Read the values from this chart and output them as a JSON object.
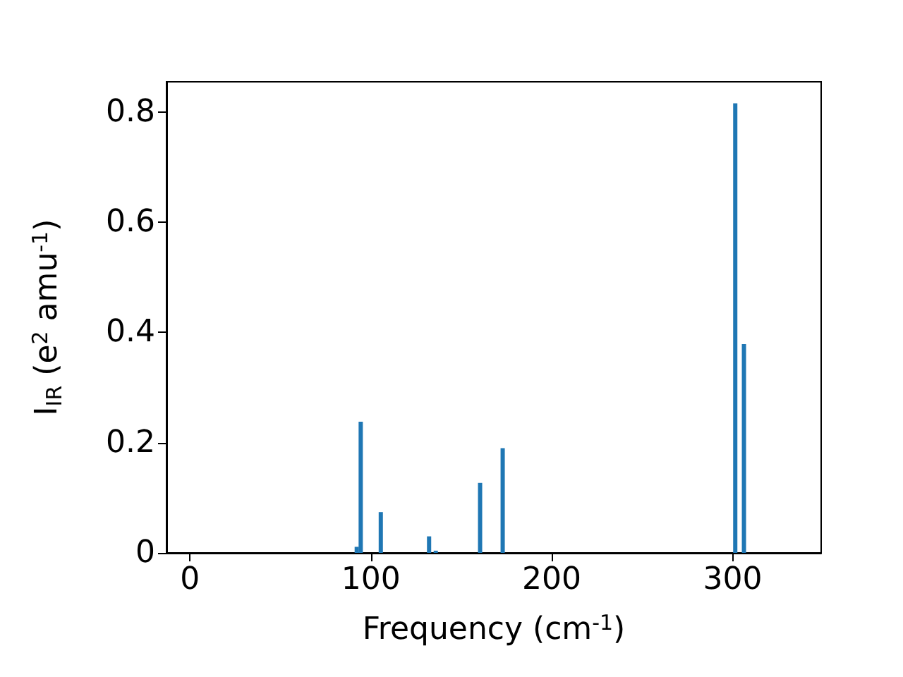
{
  "chart_data": {
    "type": "bar",
    "xlabel": "Frequency (cm$^{-1}$)",
    "ylabel": "I$_{IR}$ (e$^{2}$ amu$^{-1}$)",
    "x": [
      92.2,
      94.4,
      105.5,
      132.2,
      135.9,
      160.4,
      172.9,
      301.5,
      306.3
    ],
    "values": [
      0.011,
      0.238,
      0.074,
      0.03,
      0.004,
      0.127,
      0.19,
      0.816,
      0.379
    ],
    "color": "#1f77b4",
    "xlim": [
      -13,
      349
    ],
    "xticks": [
      0,
      100,
      200,
      300
    ],
    "ylim": [
      0,
      0.855
    ],
    "yticks": [
      0,
      0.2,
      0.4,
      0.6,
      0.8
    ],
    "grid": false
  }
}
